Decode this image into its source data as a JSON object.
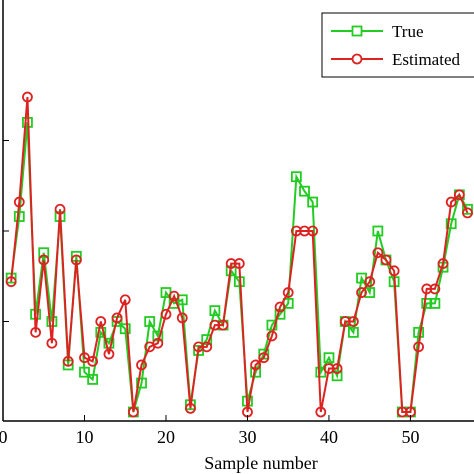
{
  "chart_data": {
    "type": "line",
    "xlabel": "Sample number",
    "ylabel": "",
    "xlim": [
      0,
      57.8
    ],
    "ylim": [
      0,
      1
    ],
    "xticks": [
      0,
      10,
      20,
      30,
      40,
      50
    ],
    "xtick_labels": [
      "0",
      "10",
      "20",
      "30",
      "40",
      "50"
    ],
    "grid": false,
    "legend_position": "top-right",
    "x": [
      1,
      2,
      3,
      4,
      5,
      6,
      7,
      8,
      9,
      10,
      11,
      12,
      13,
      14,
      15,
      16,
      17,
      18,
      19,
      20,
      21,
      22,
      23,
      24,
      25,
      26,
      27,
      28,
      29,
      30,
      31,
      32,
      33,
      34,
      35,
      36,
      37,
      38,
      39,
      40,
      41,
      42,
      43,
      44,
      45,
      46,
      47,
      48,
      49,
      50,
      51,
      52,
      53,
      54,
      55,
      56,
      57
    ],
    "series": [
      {
        "name": "True",
        "color": "#22cc22",
        "marker": "square",
        "values": [
          0.37,
          0.54,
          0.8,
          0.27,
          0.44,
          0.25,
          0.54,
          0.13,
          0.43,
          0.11,
          0.09,
          0.22,
          0.19,
          0.25,
          0.23,
          0.0,
          0.08,
          0.25,
          0.21,
          0.33,
          0.3,
          0.31,
          0.02,
          0.17,
          0.2,
          0.28,
          0.24,
          0.39,
          0.36,
          0.03,
          0.11,
          0.16,
          0.24,
          0.27,
          0.3,
          0.65,
          0.61,
          0.58,
          0.11,
          0.15,
          0.1,
          0.25,
          0.22,
          0.37,
          0.33,
          0.5,
          0.42,
          0.36,
          0.0,
          0.0,
          0.22,
          0.3,
          0.3,
          0.4,
          0.52,
          0.6,
          0.56
        ]
      },
      {
        "name": "Estimated",
        "color": "#dd2222",
        "marker": "circle",
        "values": [
          0.36,
          0.58,
          0.87,
          0.22,
          0.42,
          0.19,
          0.56,
          0.14,
          0.42,
          0.15,
          0.14,
          0.25,
          0.16,
          0.26,
          0.31,
          0.0,
          0.13,
          0.18,
          0.19,
          0.27,
          0.32,
          0.26,
          0.01,
          0.18,
          0.18,
          0.24,
          0.24,
          0.41,
          0.41,
          0.0,
          0.13,
          0.15,
          0.21,
          0.29,
          0.33,
          0.5,
          0.5,
          0.5,
          0.0,
          0.12,
          0.12,
          0.25,
          0.25,
          0.33,
          0.36,
          0.44,
          0.42,
          0.39,
          0.0,
          0.0,
          0.18,
          0.34,
          0.34,
          0.41,
          0.58,
          0.6,
          0.55
        ]
      }
    ]
  }
}
